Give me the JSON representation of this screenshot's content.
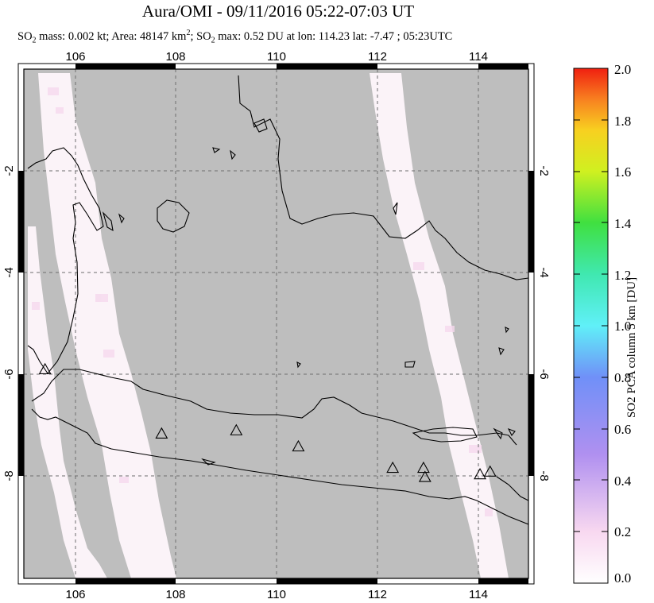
{
  "title": "Aura/OMI - 09/11/2016 05:22-07:03 UT",
  "subtitle": {
    "part1": "SO",
    "sub1": "2",
    "part2": " mass: 0.002 kt; Area: 48147 km",
    "sup1": "2",
    "part3": "; SO",
    "sub2": "2",
    "part4": " max: 0.52 DU at lon: 114.23 lat: -7.47 ; 05:23UTC"
  },
  "map": {
    "lon_ticks": [
      "106",
      "108",
      "110",
      "112",
      "114"
    ],
    "lat_ticks_left": [
      "-2",
      "-4",
      "-6",
      "-8"
    ],
    "lat_ticks_right": [
      "-2",
      "-4",
      "-6",
      "-8"
    ],
    "extent": {
      "lon_min": 105.0,
      "lon_max": 115.0,
      "lat_min": -10.0,
      "lat_max": -0.5
    },
    "volcanoes": [
      {
        "lon": 105.42,
        "lat": -6.1
      },
      {
        "lon": 107.73,
        "lat": -7.3
      },
      {
        "lon": 109.21,
        "lat": -7.24
      },
      {
        "lon": 110.44,
        "lat": -7.54
      },
      {
        "lon": 112.31,
        "lat": -7.94
      },
      {
        "lon": 112.92,
        "lat": -7.94
      },
      {
        "lon": 112.95,
        "lat": -8.11
      },
      {
        "lon": 114.04,
        "lat": -8.06
      },
      {
        "lon": 114.24,
        "lat": -8.01
      }
    ]
  },
  "colorbar": {
    "title": "SO2 PCA column 5 km [DU]",
    "labels": [
      "2.0",
      "1.8",
      "1.6",
      "1.4",
      "1.2",
      "1.0",
      "0.8",
      "0.6",
      "0.4",
      "0.2",
      "0.0"
    ],
    "min": 0.0,
    "max": 2.0
  }
}
